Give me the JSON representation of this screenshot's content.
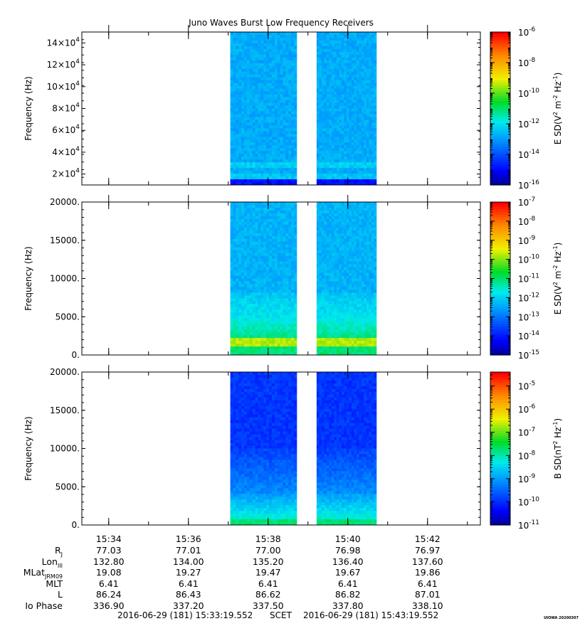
{
  "title": "Juno Waves Burst Low Frequency Receivers",
  "chart_data": [
    {
      "type": "heatmap",
      "name": "panel-1",
      "ylabel": "Frequency (Hz)",
      "ylim": [
        10000,
        150000
      ],
      "yticks": [
        20000,
        40000,
        60000,
        80000,
        100000,
        120000,
        140000
      ],
      "ytick_labels": [
        {
          "base": "2×10",
          "exp": "4"
        },
        {
          "base": "4×10",
          "exp": "4"
        },
        {
          "base": "6×10",
          "exp": "4"
        },
        {
          "base": "8×10",
          "exp": "4"
        },
        {
          "base": "10×10",
          "exp": "4"
        },
        {
          "base": "12×10",
          "exp": "4"
        },
        {
          "base": "14×10",
          "exp": "4"
        }
      ],
      "data_intervals": [
        [
          "15:37:03",
          "15:38:43"
        ],
        [
          "15:39:13",
          "15:40:43"
        ]
      ],
      "dominant_log_level": -14,
      "colorbar": {
        "label": "E SD (V² m⁻² Hz⁻¹)",
        "label_base": "E SD(V",
        "label_mid": " m",
        "label_end": " Hz",
        "label_close": ")",
        "scale": "log",
        "range_exp": [
          -16,
          -6
        ],
        "tick_exps": [
          -16,
          -14,
          -12,
          -10,
          -8,
          -6
        ]
      }
    },
    {
      "type": "heatmap",
      "name": "panel-2",
      "ylabel": "Frequency (Hz)",
      "ylim": [
        0,
        20000
      ],
      "yticks": [
        0,
        5000,
        10000,
        15000,
        20000
      ],
      "ytick_labels": [
        "0.",
        "5000.",
        "10000.",
        "15000.",
        "20000."
      ],
      "data_intervals": [
        [
          "15:37:03",
          "15:38:43"
        ],
        [
          "15:39:13",
          "15:40:43"
        ]
      ],
      "features": [
        "band near 1500 Hz"
      ],
      "colorbar": {
        "label": "E SD (V² m⁻² Hz⁻¹)",
        "label_base": "E SD(V",
        "label_mid": " m",
        "label_end": " Hz",
        "label_close": ")",
        "scale": "log",
        "range_exp": [
          -15,
          -7
        ],
        "tick_exps": [
          -15,
          -14,
          -13,
          -12,
          -11,
          -10,
          -9,
          -8,
          -7
        ]
      }
    },
    {
      "type": "heatmap",
      "name": "panel-3",
      "ylabel": "Frequency (Hz)",
      "ylim": [
        0,
        20000
      ],
      "yticks": [
        0,
        5000,
        10000,
        15000,
        20000
      ],
      "ytick_labels": [
        "0.",
        "5000.",
        "10000.",
        "15000.",
        "20000."
      ],
      "data_intervals": [
        [
          "15:37:03",
          "15:38:43"
        ],
        [
          "15:39:13",
          "15:40:43"
        ]
      ],
      "colorbar": {
        "label": "B SD (nT² Hz⁻¹)",
        "label_base": "B SD(nT",
        "label_mid": "",
        "label_end": " Hz",
        "label_close": ")",
        "scale": "log",
        "range_exp": [
          -11,
          -4.4
        ],
        "tick_exps": [
          -11,
          -10,
          -9,
          -8,
          -7,
          -6,
          -5
        ]
      }
    }
  ],
  "x_axis": {
    "time_range": [
      "15:33:19.552",
      "15:43:19.552"
    ],
    "ticks": [
      "15:34",
      "15:36",
      "15:38",
      "15:40",
      "15:42"
    ]
  },
  "ephemeris": [
    {
      "label": "R",
      "sub": "J",
      "values": [
        "77.03",
        "77.01",
        "77.00",
        "76.98",
        "76.97"
      ]
    },
    {
      "label": "Lon",
      "sub": "III",
      "values": [
        "132.80",
        "134.00",
        "135.20",
        "136.40",
        "137.60"
      ]
    },
    {
      "label": "MLat",
      "sub": "JRM09",
      "values": [
        "19.08",
        "19.27",
        "19.47",
        "19.67",
        "19.86"
      ]
    },
    {
      "label": "MLT",
      "sub": "",
      "values": [
        "6.41",
        "6.41",
        "6.41",
        "6.41",
        "6.41"
      ]
    },
    {
      "label": "L",
      "sub": "",
      "values": [
        "86.24",
        "86.43",
        "86.62",
        "86.82",
        "87.01"
      ]
    },
    {
      "label": "Io Phase",
      "sub": "",
      "values": [
        "336.90",
        "337.20",
        "337.50",
        "337.80",
        "338.10"
      ]
    }
  ],
  "footer": {
    "start": "2016-06-29 (181) 15:33:19.552",
    "scet": "SCET",
    "end": "2016-06-29 (181) 15:43:19.552"
  },
  "credit": "UIOWA 20200307"
}
